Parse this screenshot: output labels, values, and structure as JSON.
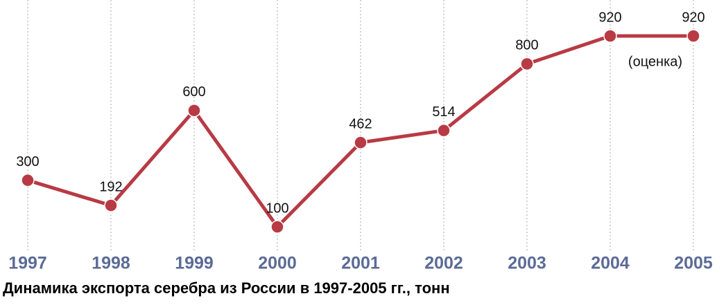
{
  "chart_data": {
    "type": "line",
    "title": "Динамика экспорта серебра из России в 1997-2005 гг., тонн",
    "categories": [
      "1997",
      "1998",
      "1999",
      "2000",
      "2001",
      "2002",
      "2003",
      "2004",
      "2005"
    ],
    "values": [
      300,
      192,
      600,
      100,
      462,
      514,
      800,
      920,
      920
    ],
    "color": "#b83a44",
    "grid": true,
    "annotation": "(оценка)"
  }
}
